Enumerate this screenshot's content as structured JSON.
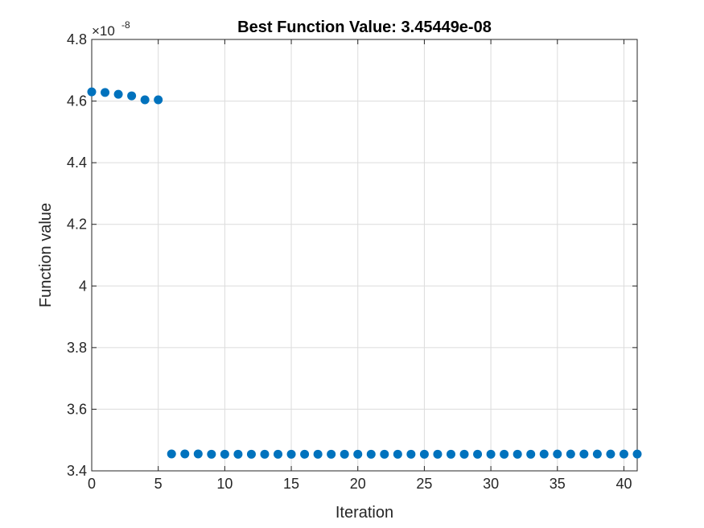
{
  "chart_data": {
    "type": "scatter",
    "title": "Best Function Value: 3.45449e-08",
    "xlabel": "Iteration",
    "ylabel": "Function value",
    "y_exponent_base": "×10",
    "y_exponent_power": "-8",
    "xlim": [
      0,
      41
    ],
    "ylim": [
      3.4,
      4.8
    ],
    "xticks": [
      0,
      5,
      10,
      15,
      20,
      25,
      30,
      35,
      40
    ],
    "xtick_labels": [
      "0",
      "5",
      "10",
      "15",
      "20",
      "25",
      "30",
      "35",
      "40"
    ],
    "yticks": [
      3.4,
      3.6,
      3.8,
      4.0,
      4.2,
      4.4,
      4.6,
      4.8
    ],
    "ytick_labels": [
      "3.4",
      "3.6",
      "3.8",
      "4",
      "4.2",
      "4.4",
      "4.6",
      "4.8"
    ],
    "grid": true,
    "marker_color": "#0072BD",
    "x": [
      0,
      1,
      2,
      3,
      4,
      5,
      6,
      7,
      8,
      9,
      10,
      11,
      12,
      13,
      14,
      15,
      16,
      17,
      18,
      19,
      20,
      21,
      22,
      23,
      24,
      25,
      26,
      27,
      28,
      29,
      30,
      31,
      32,
      33,
      34,
      35,
      36,
      37,
      38,
      39,
      40,
      41
    ],
    "y": [
      4.63,
      4.628,
      4.622,
      4.617,
      4.604,
      4.604,
      3.455,
      3.455,
      3.455,
      3.454,
      3.454,
      3.454,
      3.454,
      3.454,
      3.454,
      3.454,
      3.454,
      3.454,
      3.454,
      3.454,
      3.454,
      3.454,
      3.454,
      3.454,
      3.454,
      3.454,
      3.454,
      3.454,
      3.454,
      3.454,
      3.454,
      3.454,
      3.454,
      3.454,
      3.4545,
      3.4545,
      3.4545,
      3.4545,
      3.4545,
      3.4545,
      3.4545,
      3.4545
    ]
  }
}
